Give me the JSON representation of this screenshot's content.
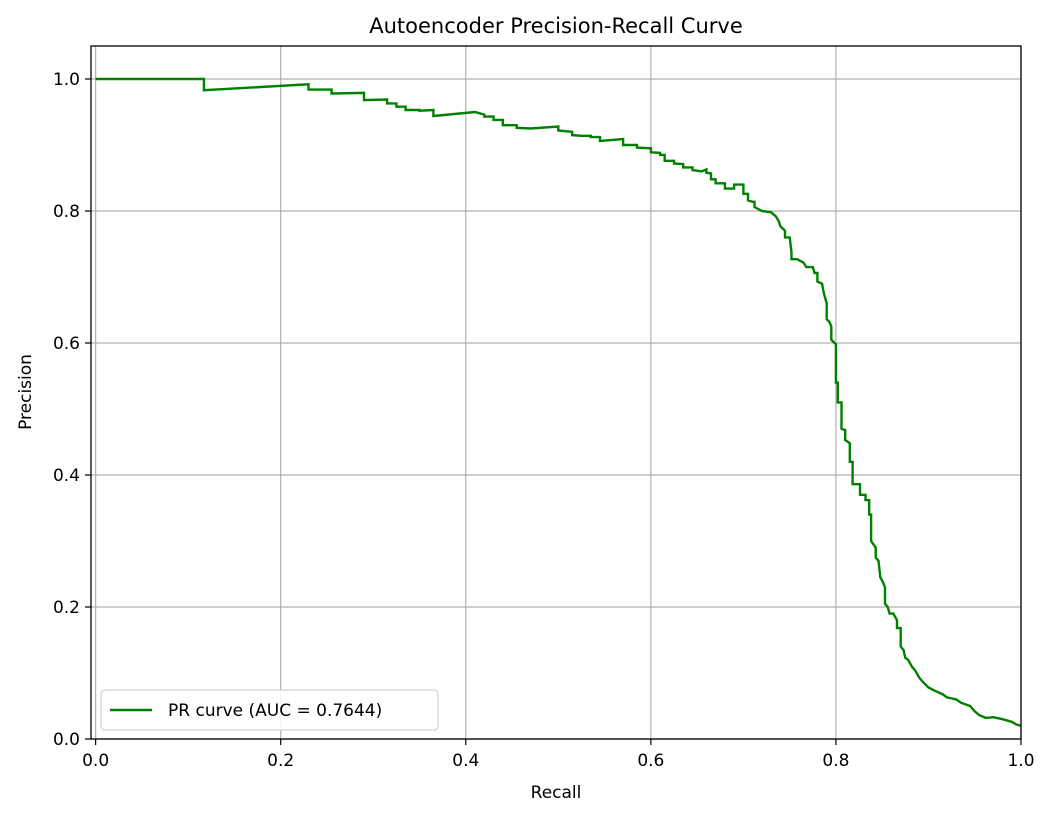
{
  "chart_data": {
    "type": "line",
    "title": "Autoencoder Precision-Recall Curve",
    "xlabel": "Recall",
    "ylabel": "Precision",
    "xlim": [
      -0.005,
      1.0
    ],
    "ylim": [
      0.0,
      1.05
    ],
    "x_ticks": [
      "0.0",
      "0.2",
      "0.4",
      "0.6",
      "0.8",
      "1.0"
    ],
    "x_tick_values": [
      0.0,
      0.2,
      0.4,
      0.6,
      0.8,
      1.0
    ],
    "y_ticks": [
      "0.0",
      "0.2",
      "0.4",
      "0.6",
      "0.8",
      "1.0"
    ],
    "y_tick_values": [
      0.0,
      0.2,
      0.4,
      0.6,
      0.8,
      1.0
    ],
    "grid": true,
    "legend_position": "lower-left",
    "series": [
      {
        "name": "PR curve (AUC = 0.7644)",
        "color": "#008000",
        "points": [
          [
            0.0,
            1.0
          ],
          [
            0.117,
            1.0
          ],
          [
            0.117,
            0.983
          ],
          [
            0.23,
            0.992
          ],
          [
            0.23,
            0.984
          ],
          [
            0.255,
            0.984
          ],
          [
            0.255,
            0.978
          ],
          [
            0.29,
            0.979
          ],
          [
            0.29,
            0.968
          ],
          [
            0.315,
            0.969
          ],
          [
            0.315,
            0.963
          ],
          [
            0.325,
            0.963
          ],
          [
            0.325,
            0.958
          ],
          [
            0.335,
            0.958
          ],
          [
            0.335,
            0.953
          ],
          [
            0.35,
            0.953
          ],
          [
            0.35,
            0.952
          ],
          [
            0.365,
            0.953
          ],
          [
            0.365,
            0.944
          ],
          [
            0.41,
            0.95
          ],
          [
            0.42,
            0.946
          ],
          [
            0.42,
            0.943
          ],
          [
            0.43,
            0.943
          ],
          [
            0.43,
            0.938
          ],
          [
            0.44,
            0.938
          ],
          [
            0.44,
            0.93
          ],
          [
            0.455,
            0.93
          ],
          [
            0.455,
            0.926
          ],
          [
            0.47,
            0.925
          ],
          [
            0.5,
            0.928
          ],
          [
            0.5,
            0.922
          ],
          [
            0.515,
            0.92
          ],
          [
            0.515,
            0.915
          ],
          [
            0.525,
            0.914
          ],
          [
            0.535,
            0.914
          ],
          [
            0.535,
            0.912
          ],
          [
            0.545,
            0.912
          ],
          [
            0.545,
            0.906
          ],
          [
            0.57,
            0.909
          ],
          [
            0.57,
            0.9
          ],
          [
            0.585,
            0.9
          ],
          [
            0.585,
            0.896
          ],
          [
            0.6,
            0.895
          ],
          [
            0.6,
            0.889
          ],
          [
            0.61,
            0.888
          ],
          [
            0.61,
            0.885
          ],
          [
            0.615,
            0.885
          ],
          [
            0.615,
            0.876
          ],
          [
            0.625,
            0.876
          ],
          [
            0.625,
            0.872
          ],
          [
            0.635,
            0.871
          ],
          [
            0.635,
            0.866
          ],
          [
            0.645,
            0.866
          ],
          [
            0.645,
            0.862
          ],
          [
            0.655,
            0.86
          ],
          [
            0.66,
            0.863
          ],
          [
            0.66,
            0.858
          ],
          [
            0.665,
            0.857
          ],
          [
            0.665,
            0.848
          ],
          [
            0.67,
            0.848
          ],
          [
            0.67,
            0.842
          ],
          [
            0.68,
            0.842
          ],
          [
            0.68,
            0.834
          ],
          [
            0.69,
            0.834
          ],
          [
            0.69,
            0.84
          ],
          [
            0.7,
            0.84
          ],
          [
            0.7,
            0.826
          ],
          [
            0.705,
            0.826
          ],
          [
            0.705,
            0.816
          ],
          [
            0.71,
            0.814
          ],
          [
            0.712,
            0.814
          ],
          [
            0.712,
            0.806
          ],
          [
            0.72,
            0.8
          ],
          [
            0.73,
            0.798
          ],
          [
            0.735,
            0.792
          ],
          [
            0.738,
            0.785
          ],
          [
            0.74,
            0.777
          ],
          [
            0.745,
            0.77
          ],
          [
            0.745,
            0.76
          ],
          [
            0.75,
            0.76
          ],
          [
            0.752,
            0.737
          ],
          [
            0.752,
            0.727
          ],
          [
            0.758,
            0.727
          ],
          [
            0.765,
            0.722
          ],
          [
            0.768,
            0.715
          ],
          [
            0.775,
            0.715
          ],
          [
            0.777,
            0.706
          ],
          [
            0.78,
            0.706
          ],
          [
            0.78,
            0.693
          ],
          [
            0.785,
            0.69
          ],
          [
            0.787,
            0.675
          ],
          [
            0.79,
            0.66
          ],
          [
            0.79,
            0.636
          ],
          [
            0.793,
            0.632
          ],
          [
            0.795,
            0.625
          ],
          [
            0.795,
            0.605
          ],
          [
            0.8,
            0.598
          ],
          [
            0.8,
            0.54
          ],
          [
            0.802,
            0.54
          ],
          [
            0.802,
            0.51
          ],
          [
            0.806,
            0.51
          ],
          [
            0.806,
            0.47
          ],
          [
            0.81,
            0.468
          ],
          [
            0.81,
            0.453
          ],
          [
            0.815,
            0.448
          ],
          [
            0.815,
            0.42
          ],
          [
            0.818,
            0.42
          ],
          [
            0.818,
            0.386
          ],
          [
            0.826,
            0.386
          ],
          [
            0.826,
            0.37
          ],
          [
            0.832,
            0.37
          ],
          [
            0.832,
            0.362
          ],
          [
            0.836,
            0.362
          ],
          [
            0.836,
            0.34
          ],
          [
            0.838,
            0.34
          ],
          [
            0.838,
            0.3
          ],
          [
            0.843,
            0.29
          ],
          [
            0.843,
            0.275
          ],
          [
            0.846,
            0.27
          ],
          [
            0.848,
            0.245
          ],
          [
            0.85,
            0.24
          ],
          [
            0.853,
            0.23
          ],
          [
            0.853,
            0.205
          ],
          [
            0.856,
            0.2
          ],
          [
            0.858,
            0.19
          ],
          [
            0.862,
            0.19
          ],
          [
            0.866,
            0.18
          ],
          [
            0.866,
            0.168
          ],
          [
            0.87,
            0.168
          ],
          [
            0.87,
            0.14
          ],
          [
            0.873,
            0.135
          ],
          [
            0.875,
            0.123
          ],
          [
            0.878,
            0.12
          ],
          [
            0.882,
            0.11
          ],
          [
            0.886,
            0.103
          ],
          [
            0.89,
            0.093
          ],
          [
            0.895,
            0.085
          ],
          [
            0.9,
            0.078
          ],
          [
            0.907,
            0.073
          ],
          [
            0.915,
            0.068
          ],
          [
            0.92,
            0.063
          ],
          [
            0.93,
            0.06
          ],
          [
            0.935,
            0.055
          ],
          [
            0.945,
            0.05
          ],
          [
            0.95,
            0.042
          ],
          [
            0.955,
            0.036
          ],
          [
            0.962,
            0.032
          ],
          [
            0.97,
            0.033
          ],
          [
            0.98,
            0.03
          ],
          [
            0.99,
            0.026
          ],
          [
            0.995,
            0.022
          ],
          [
            1.0,
            0.02
          ]
        ]
      }
    ]
  }
}
